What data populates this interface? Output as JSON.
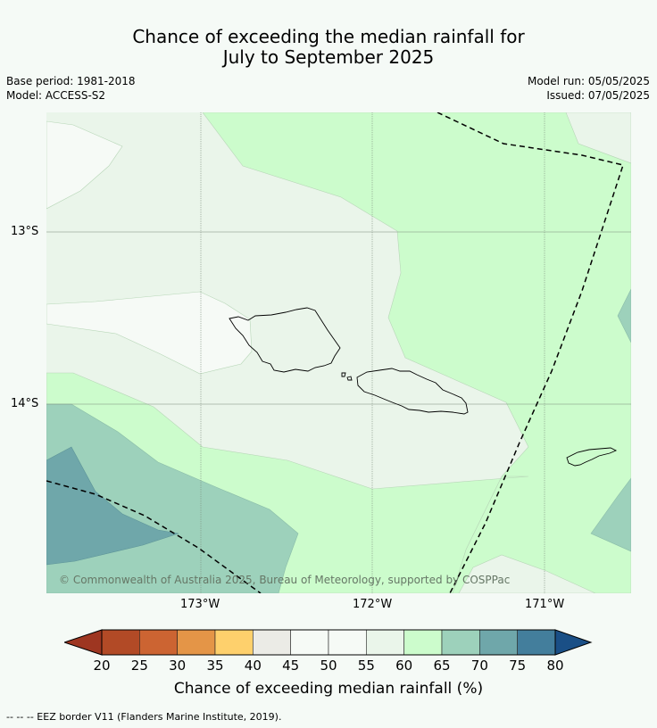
{
  "title": {
    "line1": "Chance of exceeding the median rainfall for",
    "line2": "July to September 2025"
  },
  "meta": {
    "base_period": "Base period: 1981-2018",
    "model": "Model: ACCESS-S2",
    "model_run": "Model run: 05/05/2025",
    "issued": "Issued: 07/05/2025"
  },
  "map": {
    "copyright": "© Commonwealth of Australia 2025, Bureau of Meteorology, supported by COSPPac",
    "lat_labels": [
      "13°S",
      "14°S"
    ],
    "lon_labels": [
      "173°W",
      "172°W",
      "171°W"
    ],
    "region_colors": {
      "45_50": "#f6faf6",
      "55_60": "#eaf5ea",
      "60_65": "#ccfccc",
      "65_70": "#9dd1bb",
      "70_75": "#6fa7aa"
    }
  },
  "colorbar": {
    "title": "Chance of exceeding median rainfall (%)",
    "ticks": [
      "20",
      "25",
      "30",
      "35",
      "40",
      "45",
      "50",
      "55",
      "60",
      "65",
      "70",
      "75",
      "80"
    ],
    "colors": [
      "#9e3621",
      "#b24a26",
      "#cc6432",
      "#e49547",
      "#fed06c",
      "#ebebe6",
      "#f6faf6",
      "#f6faf6",
      "#eaf5ea",
      "#ccfccc",
      "#9dd1bb",
      "#6fa7aa",
      "#437e9c",
      "#1a4f86"
    ]
  },
  "footnote": "--  --  -- EEZ border V11 (Flanders Marine Institute, 2019)."
}
